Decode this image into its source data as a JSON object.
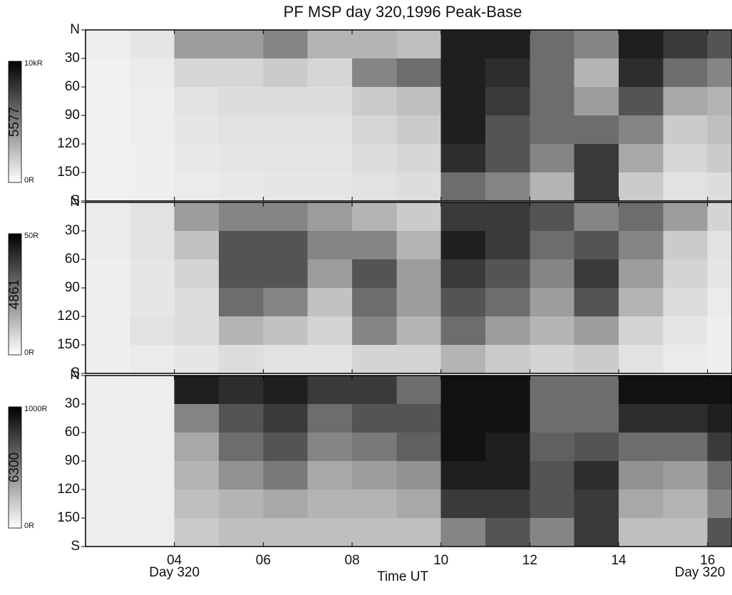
{
  "chart_data": {
    "type": "heatmap",
    "title": "PF MSP day 320,1996 Peak-Base",
    "xlabel": "Time UT",
    "date_labels": [
      "Day 320",
      "Day 320"
    ],
    "xlim": [
      2,
      16.55
    ],
    "xticks": [
      {
        "value": 4,
        "label": "04"
      },
      {
        "value": 6,
        "label": "06"
      },
      {
        "value": 8,
        "label": "08"
      },
      10,
      12,
      14,
      16
    ],
    "ylim": [
      0,
      180
    ],
    "yticks": [
      {
        "value": 0,
        "label": "N"
      },
      30,
      60,
      90,
      120,
      150,
      {
        "value": 180,
        "label": "S"
      }
    ],
    "xbins": [
      2,
      3,
      4,
      5,
      6,
      7,
      8,
      9,
      10,
      11,
      12,
      13,
      14,
      15,
      16,
      16.55
    ],
    "ybins": [
      0,
      30,
      60,
      90,
      120,
      150,
      180
    ],
    "panels": [
      {
        "label": "5577",
        "zlim": [
          {
            "value": 0,
            "label": "0R"
          },
          {
            "value": 10000,
            "label": "10kR"
          }
        ],
        "values": [
          [
            500,
            800,
            4000,
            4000,
            5000,
            3000,
            3000,
            2500,
            9000,
            9000,
            6000,
            5000,
            9000,
            8000,
            7000
          ],
          [
            300,
            600,
            1500,
            1500,
            2000,
            1500,
            5000,
            6000,
            9000,
            8500,
            6000,
            3000,
            8500,
            6000,
            5000
          ],
          [
            300,
            500,
            1000,
            1200,
            1200,
            1200,
            2000,
            2500,
            9000,
            8000,
            6000,
            4000,
            7000,
            3500,
            3000
          ],
          [
            300,
            500,
            800,
            1000,
            1000,
            1000,
            1500,
            2000,
            9000,
            7000,
            6000,
            6000,
            5000,
            2000,
            2500
          ],
          [
            300,
            400,
            700,
            800,
            900,
            900,
            1200,
            1500,
            8500,
            7000,
            5000,
            8000,
            3500,
            1500,
            2000
          ],
          [
            300,
            400,
            600,
            700,
            800,
            800,
            1000,
            1200,
            6000,
            5000,
            3000,
            8000,
            2000,
            1000,
            1200
          ]
        ]
      },
      {
        "label": "4861",
        "zlim": [
          {
            "value": 0,
            "label": "0R"
          },
          {
            "value": 50,
            "label": "50R"
          }
        ],
        "values": [
          [
            3,
            5,
            20,
            25,
            25,
            20,
            15,
            10,
            40,
            40,
            35,
            25,
            30,
            20,
            8
          ],
          [
            3,
            5,
            12,
            35,
            35,
            25,
            25,
            15,
            45,
            40,
            30,
            35,
            25,
            10,
            5
          ],
          [
            2,
            4,
            8,
            35,
            35,
            20,
            35,
            20,
            40,
            35,
            25,
            40,
            20,
            8,
            4
          ],
          [
            2,
            4,
            6,
            30,
            25,
            12,
            30,
            20,
            35,
            30,
            20,
            35,
            15,
            6,
            3
          ],
          [
            2,
            5,
            6,
            15,
            12,
            8,
            25,
            15,
            30,
            20,
            15,
            20,
            8,
            4,
            2
          ],
          [
            2,
            3,
            4,
            6,
            5,
            5,
            8,
            8,
            15,
            10,
            8,
            10,
            5,
            3,
            2
          ]
        ]
      },
      {
        "label": "6300",
        "zlim": [
          {
            "value": 0,
            "label": "0R"
          },
          {
            "value": 1000,
            "label": "1000R"
          }
        ],
        "values": [
          [
            50,
            50,
            900,
            850,
            900,
            800,
            800,
            600,
            950,
            950,
            600,
            600,
            950,
            950,
            950
          ],
          [
            50,
            50,
            500,
            700,
            800,
            600,
            700,
            700,
            950,
            950,
            600,
            600,
            850,
            850,
            900
          ],
          [
            50,
            50,
            350,
            600,
            700,
            500,
            550,
            650,
            950,
            900,
            650,
            700,
            600,
            600,
            800
          ],
          [
            50,
            50,
            300,
            450,
            550,
            350,
            400,
            450,
            900,
            900,
            700,
            850,
            450,
            400,
            600
          ],
          [
            50,
            50,
            250,
            300,
            350,
            300,
            300,
            350,
            800,
            800,
            700,
            800,
            350,
            300,
            500
          ],
          [
            50,
            50,
            200,
            250,
            250,
            250,
            250,
            250,
            500,
            700,
            500,
            800,
            250,
            250,
            700
          ]
        ]
      }
    ]
  }
}
